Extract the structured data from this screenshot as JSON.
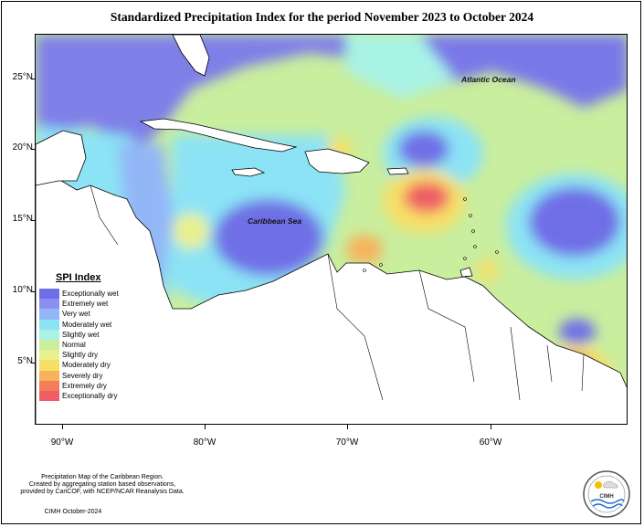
{
  "title": "Standardized Precipitation Index for the period November 2023 to October 2024",
  "map": {
    "ocean_labels": {
      "atlantic": "Atlantic Ocean",
      "caribbean": "Caribbean Sea"
    },
    "lat_labels": [
      "25°N",
      "20°N",
      "15°N",
      "10°N",
      "5°N"
    ],
    "lon_labels": [
      "90°W",
      "80°W",
      "70°W",
      "60°W"
    ]
  },
  "legend": {
    "title": "SPI Index",
    "items": [
      {
        "label": "Exceptionally wet",
        "color": "#6f6ee6"
      },
      {
        "label": "Extremely wet",
        "color": "#8a8ff0"
      },
      {
        "label": "Very wet",
        "color": "#93b6f7"
      },
      {
        "label": "Moderately wet",
        "color": "#8ce3f5"
      },
      {
        "label": "Slightly wet",
        "color": "#a9f3e6"
      },
      {
        "label": "Normal",
        "color": "#c9ee9e"
      },
      {
        "label": "Slightly dry",
        "color": "#e9f08e"
      },
      {
        "label": "Moderately dry",
        "color": "#f7df66"
      },
      {
        "label": "Severely dry",
        "color": "#f7b25c"
      },
      {
        "label": "Extremely dry",
        "color": "#f47d5a"
      },
      {
        "label": "Exceptionally dry",
        "color": "#ef5d66"
      }
    ]
  },
  "credits": {
    "line1": "Precipitation Map of the Caribbean Region.",
    "line2": "Created by aggregating station based observations,",
    "line3": "provided by CariCOF, with NCEP/NCAR Reanalysis Data.",
    "footer": "CIMH October-2024"
  },
  "logo": {
    "text": "CIMH",
    "icon": "cimh-logo-icon"
  }
}
